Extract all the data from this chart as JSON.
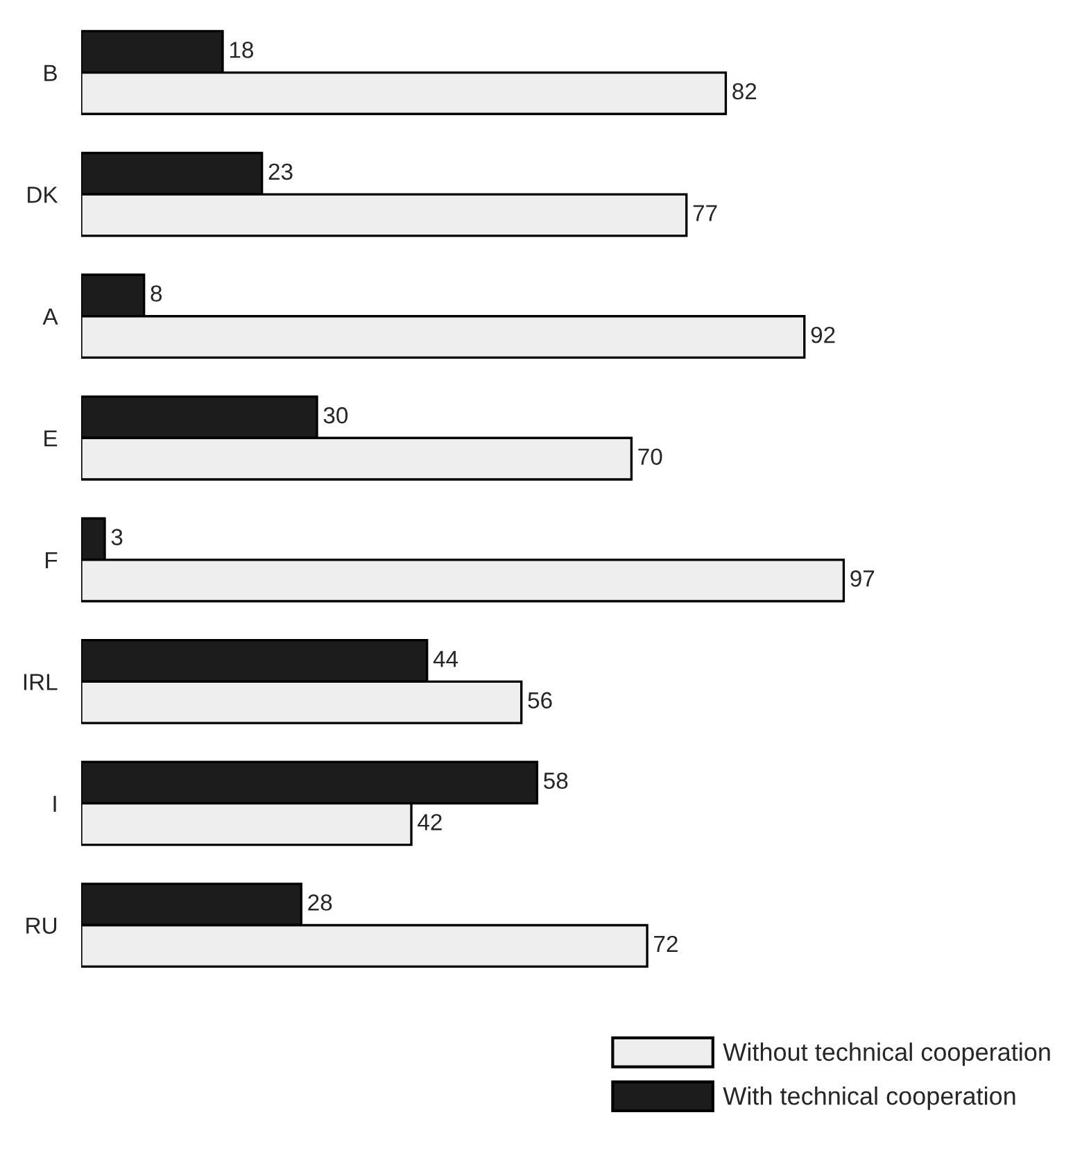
{
  "chart_data": {
    "type": "bar",
    "orientation": "horizontal",
    "categories": [
      "B",
      "DK",
      "A",
      "E",
      "F",
      "IRL",
      "I",
      "RU"
    ],
    "series": [
      {
        "name": "With technical cooperation",
        "color": "#1c1c1c",
        "values": [
          18,
          23,
          8,
          30,
          3,
          44,
          58,
          28
        ]
      },
      {
        "name": "Without technical cooperation",
        "color": "#eeeeee",
        "values": [
          82,
          77,
          92,
          70,
          97,
          56,
          42,
          72
        ]
      }
    ],
    "data_labels": true,
    "tick_labels": "y",
    "grid": false,
    "legend": "bottom right"
  }
}
